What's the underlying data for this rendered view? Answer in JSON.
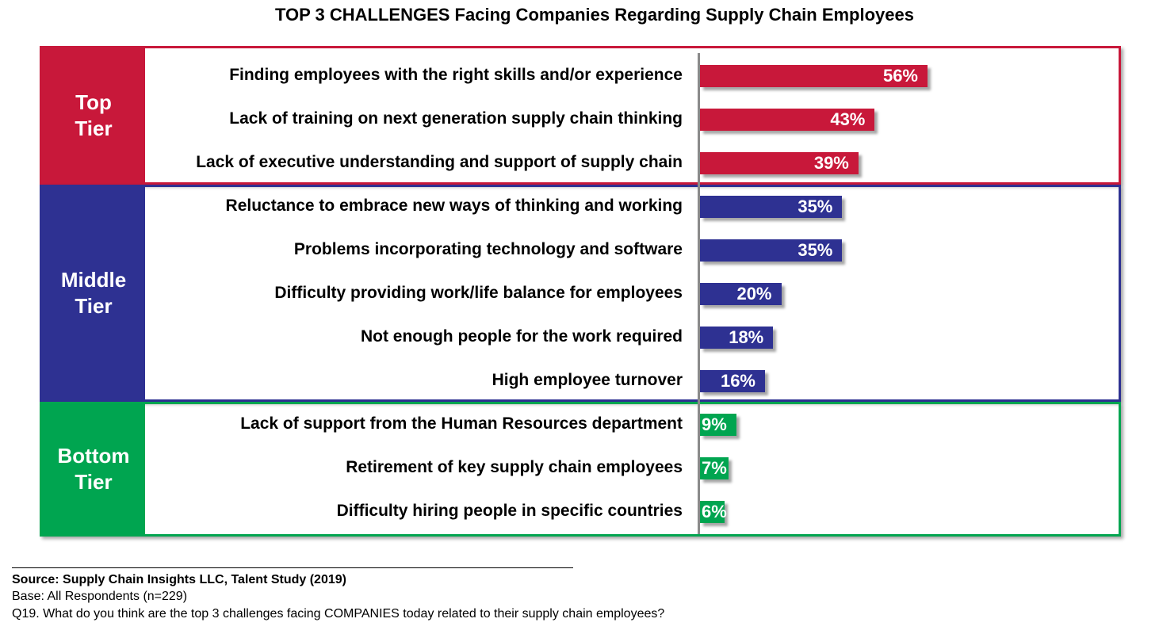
{
  "chart_data": {
    "type": "bar",
    "orientation": "horizontal",
    "title": "TOP 3 CHALLENGES Facing Companies Regarding Supply Chain Employees",
    "value_suffix": "%",
    "xlim": [
      0,
      100
    ],
    "tiers": [
      {
        "label": "Top\nTier",
        "color": "#C8183A",
        "items": [
          {
            "label": "Finding employees with the right skills and/or experience",
            "value": 56
          },
          {
            "label": "Lack of training on next generation supply chain thinking",
            "value": 43
          },
          {
            "label": "Lack of executive understanding and support of supply chain",
            "value": 39
          }
        ]
      },
      {
        "label": "Middle\nTier",
        "color": "#2E3192",
        "items": [
          {
            "label": "Reluctance to embrace new ways of thinking and working",
            "value": 35
          },
          {
            "label": "Problems incorporating technology and software",
            "value": 35
          },
          {
            "label": "Difficulty providing work/life balance for employees",
            "value": 20
          },
          {
            "label": "Not enough people for the work required",
            "value": 18
          },
          {
            "label": "High employee turnover",
            "value": 16
          }
        ]
      },
      {
        "label": "Bottom\nTier",
        "color": "#00A550",
        "items": [
          {
            "label": "Lack of support from the Human Resources department",
            "value": 9
          },
          {
            "label": "Retirement of key supply chain employees",
            "value": 7
          },
          {
            "label": "Difficulty hiring people in specific countries",
            "value": 6
          }
        ]
      }
    ]
  },
  "footer": {
    "source": "Source:  Supply Chain Insights LLC, Talent Study (2019)",
    "base": "Base: All Respondents (n=229)",
    "question": "Q19. What do you think are the top 3 challenges facing COMPANIES today related to their supply chain employees?"
  }
}
